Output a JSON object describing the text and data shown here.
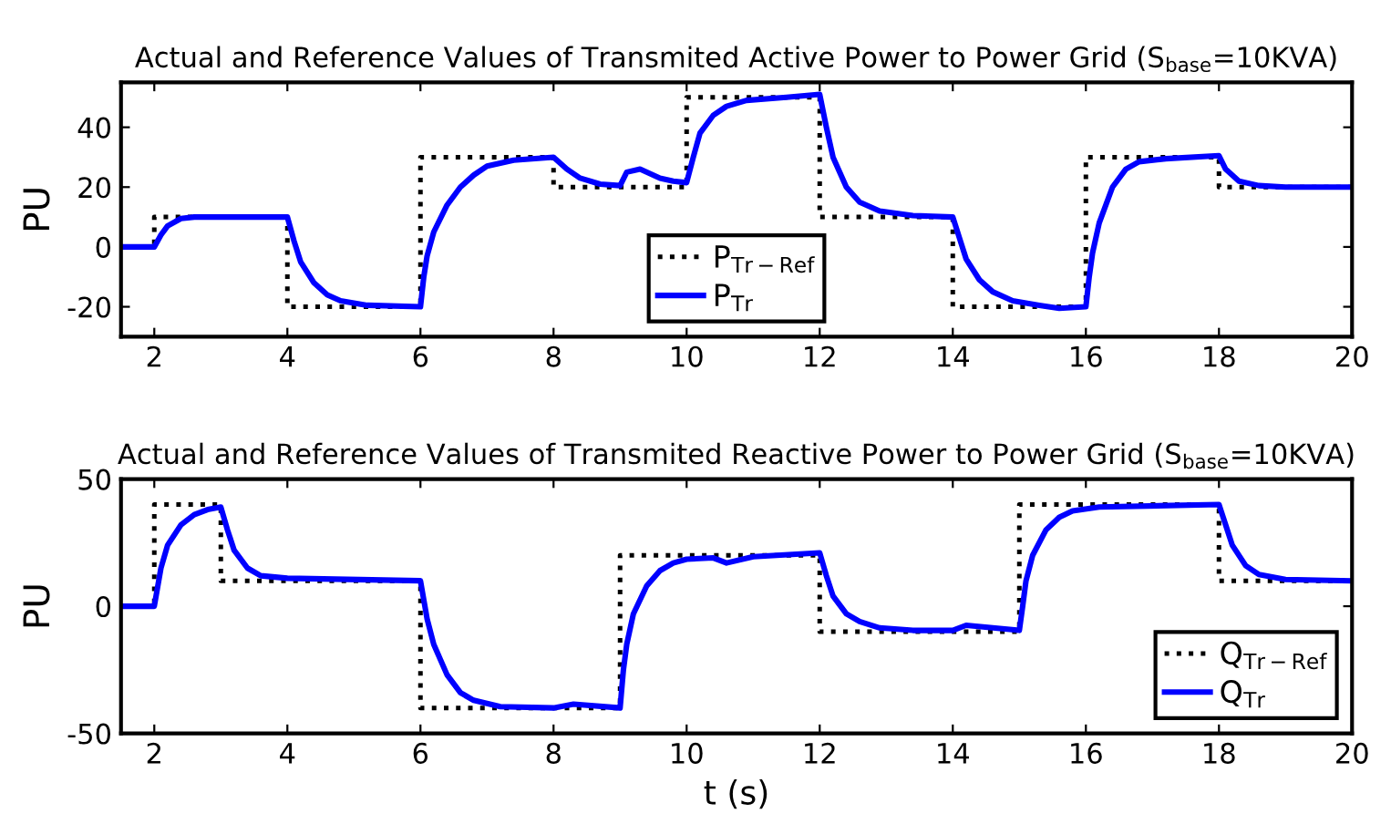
{
  "chart_data": [
    {
      "type": "line",
      "title": "Actual and Reference Values of Transmited Active Power to Power Grid (S$_{base}$=10KVA)",
      "ylabel": "PU",
      "xlim": [
        1.5,
        20
      ],
      "xticks": [
        2,
        4,
        6,
        8,
        10,
        12,
        14,
        16,
        18,
        20
      ],
      "ylim": [
        -30,
        55
      ],
      "yticks": [
        -20,
        0,
        20,
        40
      ],
      "grid": false,
      "legend": "bottom",
      "series": [
        {
          "name": "P$_{Tr−Ref}$",
          "type": "step",
          "color": "#000000",
          "line_style": "dotted",
          "x": [
            1.5,
            2,
            4,
            6,
            8,
            10,
            12,
            14,
            16,
            18,
            20
          ],
          "values": [
            0,
            10,
            -20,
            30,
            20,
            50,
            10,
            -20,
            30,
            20,
            20
          ]
        },
        {
          "name": "P$_{Tr}$",
          "color": "#0000ff",
          "line_style": "solid",
          "x": [
            1.5,
            2.0,
            2.1,
            2.2,
            2.4,
            2.6,
            4.0,
            4.1,
            4.2,
            4.4,
            4.6,
            4.8,
            5.2,
            6.0,
            6.05,
            6.1,
            6.2,
            6.4,
            6.6,
            6.8,
            7.0,
            7.4,
            8.0,
            8.2,
            8.4,
            8.7,
            9.0,
            9.1,
            9.3,
            9.6,
            9.8,
            10.0,
            10.1,
            10.2,
            10.4,
            10.6,
            10.9,
            11.5,
            12.0,
            12.1,
            12.2,
            12.4,
            12.6,
            12.9,
            13.4,
            14.0,
            14.1,
            14.2,
            14.4,
            14.6,
            14.9,
            15.3,
            15.6,
            16.0,
            16.05,
            16.1,
            16.2,
            16.4,
            16.6,
            16.8,
            17.2,
            18.0,
            18.1,
            18.3,
            18.6,
            19,
            20
          ],
          "values": [
            0,
            0,
            4,
            7,
            9.5,
            10,
            10,
            2,
            -5,
            -12,
            -16,
            -18,
            -19.5,
            -20,
            -10,
            -3,
            5,
            14,
            20,
            24,
            27,
            29,
            30,
            26,
            23,
            21,
            20.5,
            25,
            26,
            23,
            22,
            21.5,
            30,
            38,
            44,
            47,
            49,
            50,
            51,
            40,
            30,
            20,
            15,
            12,
            10.5,
            10,
            3,
            -4,
            -11,
            -15,
            -18,
            -19.5,
            -20.5,
            -20,
            -10,
            -2,
            8,
            20,
            26,
            28.5,
            29.5,
            30.5,
            26,
            22,
            20.5,
            20,
            20
          ]
        }
      ]
    },
    {
      "type": "line",
      "title": "Actual and Reference Values of Transmited Reactive Power to Power Grid (S$_{base}$=10KVA)",
      "xlabel": "t (s)",
      "ylabel": "PU",
      "xlim": [
        1.5,
        20
      ],
      "xticks": [
        2,
        4,
        6,
        8,
        10,
        12,
        14,
        16,
        18,
        20
      ],
      "ylim": [
        -50,
        50
      ],
      "yticks": [
        -50,
        0,
        50
      ],
      "grid": false,
      "legend": "bottom right",
      "series": [
        {
          "name": "Q$_{Tr−Ref}$",
          "type": "step",
          "color": "#000000",
          "line_style": "dotted",
          "x": [
            1.5,
            2,
            3,
            6,
            9,
            12,
            15,
            18,
            20
          ],
          "values": [
            0,
            40,
            10,
            -40,
            20,
            -10,
            40,
            10,
            10
          ]
        },
        {
          "name": "Q$_{Tr}$",
          "color": "#0000ff",
          "line_style": "solid",
          "x": [
            1.5,
            2,
            2.1,
            2.2,
            2.4,
            2.6,
            2.8,
            3.0,
            3.1,
            3.2,
            3.4,
            3.6,
            4,
            6,
            6.1,
            6.2,
            6.4,
            6.6,
            6.8,
            7.2,
            8,
            8.3,
            9,
            9.05,
            9.1,
            9.2,
            9.4,
            9.6,
            9.8,
            10,
            10.4,
            10.6,
            11,
            12,
            12.1,
            12.2,
            12.4,
            12.6,
            12.9,
            13.4,
            14,
            14.2,
            15,
            15.05,
            15.1,
            15.2,
            15.4,
            15.6,
            15.8,
            16.2,
            18,
            18.1,
            18.2,
            18.4,
            18.6,
            19,
            20
          ],
          "values": [
            0,
            0,
            15,
            24,
            32,
            36,
            38,
            39,
            30,
            22,
            15,
            12,
            11,
            10,
            -5,
            -15,
            -27,
            -34,
            -37,
            -39.5,
            -40,
            -38.5,
            -40,
            -25,
            -15,
            -3,
            8,
            14,
            17,
            18.5,
            19,
            17,
            19.5,
            21,
            12,
            4,
            -3,
            -6,
            -8.5,
            -9.5,
            -9.5,
            -7.5,
            -9.5,
            0,
            10,
            20,
            30,
            35,
            37.5,
            39,
            40,
            32,
            24,
            16,
            12.5,
            10.5,
            10
          ]
        }
      ]
    }
  ]
}
